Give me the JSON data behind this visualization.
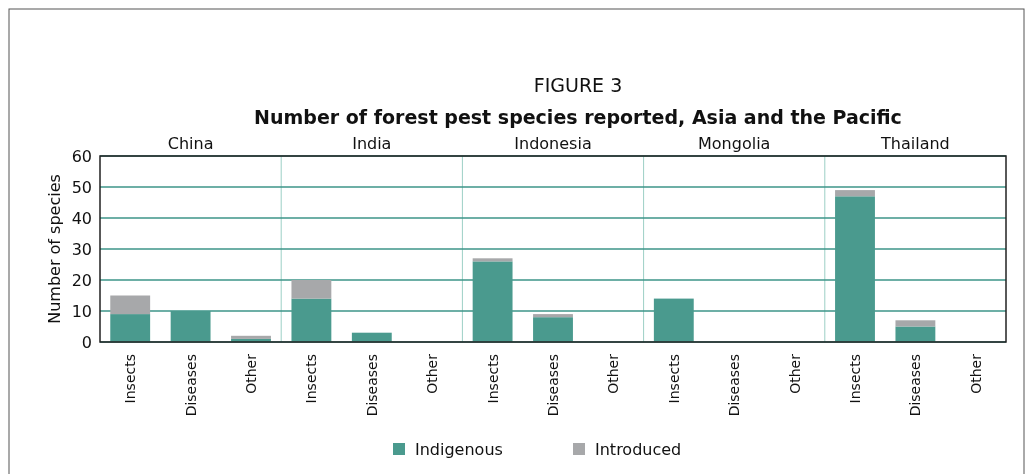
{
  "chart_data": {
    "type": "bar",
    "title": "FIGURE 3",
    "subtitle": "Number of forest pest species reported, Asia and the Pacific",
    "ylabel": "Number of species",
    "categories": [
      "Insects",
      "Diseases",
      "Other",
      "Insects",
      "Diseases",
      "Other",
      "Insects",
      "Diseases",
      "Other",
      "Insects",
      "Diseases",
      "Other",
      "Insects",
      "Diseases",
      "Other"
    ],
    "annotations": [
      "China",
      "India",
      "Indonesia",
      "Mongolia",
      "Thailand"
    ],
    "stacked": true,
    "series": [
      {
        "name": "Indigenous",
        "color": "#4a9a8e",
        "values": [
          9,
          10,
          1,
          14,
          3,
          0,
          26,
          8,
          0,
          14,
          0,
          0,
          47,
          5,
          0
        ]
      },
      {
        "name": "Introduced",
        "color": "#a7a8aa",
        "values": [
          6,
          0,
          1,
          6,
          0,
          0,
          1,
          1,
          0,
          0,
          0,
          0,
          2,
          2,
          0
        ]
      }
    ],
    "ylim": [
      0,
      60
    ],
    "yticks": [
      0,
      10,
      20,
      30,
      40,
      50,
      60
    ],
    "grid": "y",
    "legend": "bottom"
  }
}
